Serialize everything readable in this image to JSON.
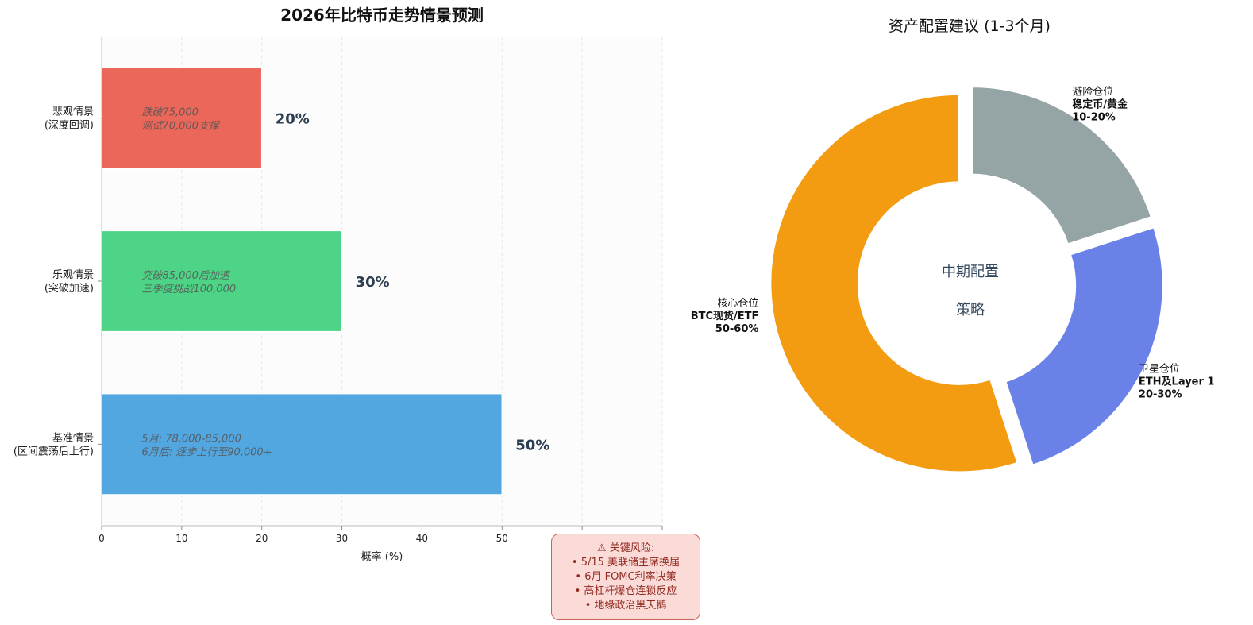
{
  "chart_data": [
    {
      "type": "bar",
      "orientation": "horizontal",
      "title": "2026年比特币走势情景预测",
      "xlabel": "概率 (%)",
      "xlim": [
        0,
        70
      ],
      "xticks": [
        "0",
        "10",
        "20",
        "30",
        "40",
        "50",
        "60",
        "70"
      ],
      "grid": true,
      "categories": [
        {
          "label_lines": [
            "悲观情景",
            "(深度回调)"
          ],
          "value": 20,
          "value_label": "20%",
          "color": "#e74c3c",
          "note_lines": [
            "跌破75,000",
            "测试70,000支撑"
          ]
        },
        {
          "label_lines": [
            "乐观情景",
            "(突破加速)"
          ],
          "value": 30,
          "value_label": "30%",
          "color": "#2ecc71",
          "note_lines": [
            "突破85,000后加速",
            "三季度挑战100,000"
          ]
        },
        {
          "label_lines": [
            "基准情景",
            "(区间震荡后上行)"
          ],
          "value": 50,
          "value_label": "50%",
          "color": "#3498db",
          "note_lines": [
            "5月: 78,000-85,000",
            "6月后: 逐步上行至90,000+"
          ]
        }
      ]
    },
    {
      "type": "pie",
      "donut": true,
      "title": "资产配置建议 (1-3个月)",
      "center_text_lines": [
        "中期配置",
        "策略"
      ],
      "slices": [
        {
          "name_line": "避险仓位",
          "detail_line": "稳定币/黄金",
          "range_label": "10-20%",
          "value": 20,
          "color": "#95a5a6"
        },
        {
          "name_line": "卫星仓位",
          "detail_line": "ETH及Layer 1",
          "range_label": "20-30%",
          "value": 25,
          "color": "#6a82e8"
        },
        {
          "name_line": "核心仓位",
          "detail_line": "BTC现货/ETF",
          "range_label": "50-60%",
          "value": 55,
          "color": "#f39c12"
        }
      ]
    }
  ],
  "risk_box": {
    "title": "⚠ 关键风险:",
    "items": [
      "• 5/15 美联储主席换届",
      "• 6月 FOMC利率决策",
      "• 高杠杆爆仓连锁反应",
      "• 地缘政治黑天鹅"
    ]
  }
}
